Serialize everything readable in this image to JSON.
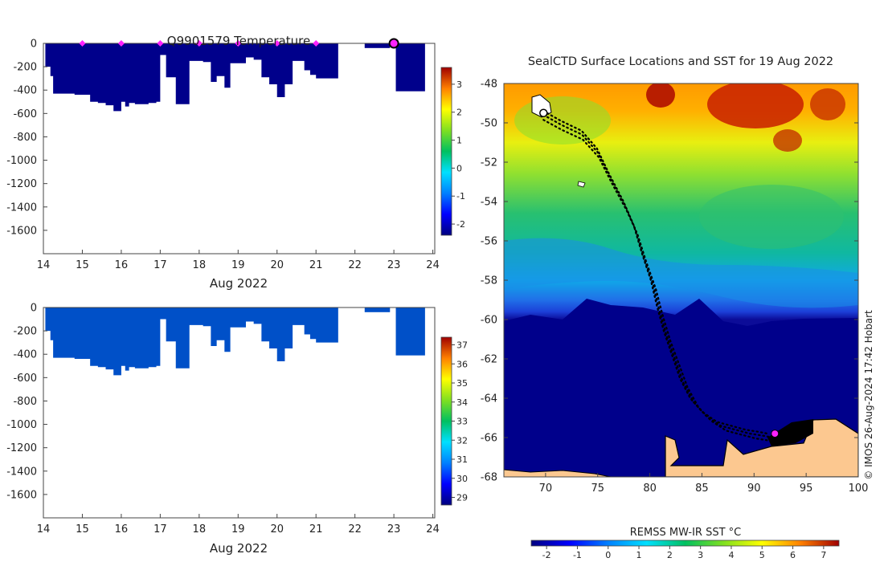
{
  "chart_data": [
    {
      "type": "heatmap",
      "panel": "temperature-profile",
      "title": "Q9901579  Temperature",
      "xlabel": "Aug 2022",
      "ylabel": "",
      "x_ticks": [
        14,
        15,
        16,
        17,
        18,
        19,
        20,
        21,
        22,
        23,
        24
      ],
      "y_ticks": [
        0,
        -200,
        -400,
        -600,
        -800,
        -1000,
        -1200,
        -1400,
        -1600
      ],
      "xlim": [
        14,
        24.05
      ],
      "ylim": [
        -1800,
        0
      ],
      "fill_color": "#00008b",
      "profile_bottoms": {
        "x": [
          14.05,
          14.18,
          14.25,
          14.5,
          14.8,
          15.2,
          15.4,
          15.6,
          15.8,
          15.9,
          16.0,
          16.1,
          16.2,
          16.35,
          16.5,
          16.7,
          16.9,
          17.0,
          17.15,
          17.4,
          17.55,
          17.75,
          17.95,
          18.1,
          18.2,
          18.3,
          18.45,
          18.65,
          18.8,
          18.9,
          19.2,
          19.4,
          19.6,
          19.8,
          20.0,
          20.2,
          20.4,
          20.7,
          20.85,
          21.0,
          21.2,
          21.45
        ],
        "depth": [
          -200,
          -280,
          -430,
          -430,
          -440,
          -500,
          -510,
          -530,
          -580,
          -580,
          -500,
          -540,
          -510,
          -520,
          -520,
          -510,
          -500,
          -100,
          -290,
          -520,
          -520,
          -150,
          -150,
          -160,
          -160,
          -330,
          -280,
          -380,
          -170,
          -170,
          -120,
          -140,
          -290,
          -350,
          -460,
          -350,
          -150,
          -230,
          -270,
          -300,
          -300,
          -300
        ]
      },
      "extra_profiles": [
        {
          "x0": 22.25,
          "x1": 22.9,
          "depth": -40
        },
        {
          "x0": 23.05,
          "x1": 23.8,
          "depth": -410
        }
      ],
      "surface_markers_x": [
        15,
        16,
        17,
        18,
        19,
        20,
        21
      ],
      "latest_marker_x": 23,
      "colorbar_label": "",
      "colorbar_ticks": [
        -2,
        -1,
        0,
        1,
        2,
        3
      ],
      "colorbar_range": [
        -2.4,
        3.6
      ]
    },
    {
      "type": "heatmap",
      "panel": "salinity-profile",
      "title": "",
      "xlabel": "Aug 2022",
      "ylabel": "",
      "x_ticks": [
        14,
        15,
        16,
        17,
        18,
        19,
        20,
        21,
        22,
        23,
        24
      ],
      "y_ticks": [
        0,
        -200,
        -400,
        -600,
        -800,
        -1000,
        -1200,
        -1400,
        -1600
      ],
      "xlim": [
        14,
        24.05
      ],
      "ylim": [
        -1800,
        0
      ],
      "fill_color": "#0050c8",
      "colorbar_ticks": [
        29,
        30,
        31,
        32,
        33,
        34,
        35,
        36,
        37
      ],
      "colorbar_range": [
        28.6,
        37.4
      ]
    },
    {
      "type": "heatmap",
      "panel": "sst-map",
      "title": "SealCTD Surface Locations and SST for 19 Aug 2022",
      "xlabel": "",
      "ylabel": "",
      "x_ticks": [
        70,
        75,
        80,
        85,
        90,
        95,
        100
      ],
      "y_ticks": [
        -48,
        -50,
        -52,
        -54,
        -56,
        -58,
        -60,
        -62,
        -64,
        -66,
        -68
      ],
      "xlim": [
        66,
        100
      ],
      "ylim": [
        -68,
        -48
      ],
      "colorbar_label": "REMSS MW-IR SST °C",
      "colorbar_ticks": [
        -2,
        -1,
        0,
        1,
        2,
        3,
        4,
        5,
        6,
        7
      ],
      "colorbar_range": [
        -2.5,
        7.5
      ],
      "track_lon": [
        69.8,
        71.5,
        73.5,
        75.0,
        76.2,
        77.6,
        78.6,
        79.4,
        80.3,
        80.9,
        81.6,
        82.4,
        83.2,
        84.2,
        85.4,
        86.8,
        88.2,
        89.6,
        90.8,
        91.8
      ],
      "track_lat": [
        -49.6,
        -50.1,
        -50.6,
        -51.5,
        -52.8,
        -54.2,
        -55.4,
        -56.8,
        -58.2,
        -59.5,
        -60.8,
        -62.0,
        -63.2,
        -64.2,
        -64.9,
        -65.4,
        -65.6,
        -65.8,
        -65.9,
        -66.0
      ],
      "latest_position": {
        "lon": 92.0,
        "lat": -65.8
      },
      "start_position": {
        "lon": 69.8,
        "lat": -49.5
      },
      "credit": "© IMOS 26-Aug-2024 17:42 Hobart"
    }
  ],
  "colors": {
    "marker": "#ff22ff",
    "land": "#fcc890",
    "ice_ocean": "#00008b"
  }
}
